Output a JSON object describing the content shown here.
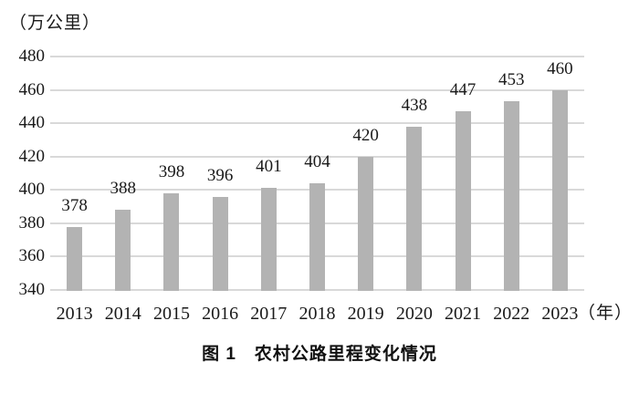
{
  "unit_label": "（万公里）",
  "x_axis_suffix": "（年）",
  "caption": "图 1　农村公路里程变化情况",
  "chart_data": {
    "type": "bar",
    "title": "图 1 农村公路里程变化情况",
    "categories": [
      "2013",
      "2014",
      "2015",
      "2016",
      "2017",
      "2018",
      "2019",
      "2020",
      "2021",
      "2022",
      "2023"
    ],
    "values": [
      378,
      388,
      398,
      396,
      401,
      404,
      420,
      438,
      447,
      453,
      460
    ],
    "ylabel": "（万公里）",
    "xlabel": "（年）",
    "ylim": [
      340,
      480
    ],
    "ytick_step": 20,
    "grid": true,
    "legend": "none",
    "data_labels": "outside-end",
    "bar_color": "#b3b3b3",
    "gridline_color": "#d9d9d9",
    "text_color": "#1a1a1a"
  }
}
